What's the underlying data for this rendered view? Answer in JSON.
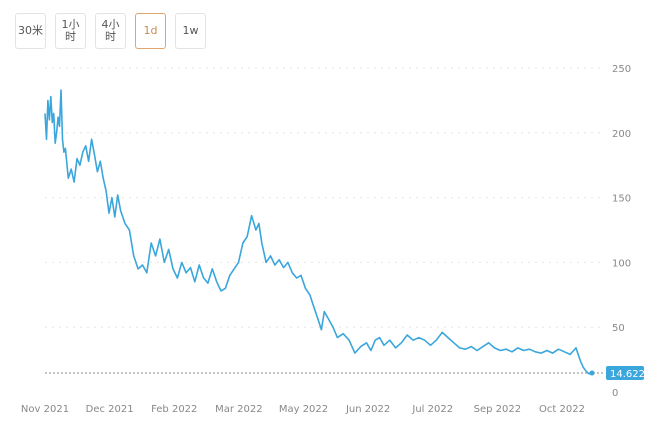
{
  "timeframes": [
    {
      "label": "30米",
      "active": false
    },
    {
      "label": "1小时",
      "active": false
    },
    {
      "label": "4小\n时",
      "active": false
    },
    {
      "label": "1d",
      "active": true
    },
    {
      "label": "1w",
      "active": false
    }
  ],
  "colors": {
    "line": "#3aa6dc",
    "accent": "#e0a46c",
    "grid": "#e6e6e6",
    "tick": "#888888"
  },
  "chart_data": {
    "type": "line",
    "x_tick_labels": [
      "Nov 2021",
      "Dec 2021",
      "Feb 2022",
      "Mar 2022",
      "May 2022",
      "Jun 2022",
      "Jul 2022",
      "Sep 2022",
      "Oct 2022"
    ],
    "y_ticks": [
      0,
      50,
      100,
      150,
      200,
      250
    ],
    "ylim": [
      0,
      250
    ],
    "y_axis_side": "right",
    "grid": "horizontal dotted",
    "current_price_label": "14.622",
    "current_price": 14.622,
    "series": [
      {
        "x": [
          "2021-11-01",
          "2021-11-02",
          "2021-11-03",
          "2021-11-04",
          "2021-11-05",
          "2021-11-06",
          "2021-11-07",
          "2021-11-08",
          "2021-11-09",
          "2021-11-10",
          "2021-11-11",
          "2021-11-12",
          "2021-11-13",
          "2021-11-14",
          "2021-11-15",
          "2021-11-17",
          "2021-11-19",
          "2021-11-21",
          "2021-11-23",
          "2021-11-25",
          "2021-11-27",
          "2021-11-29",
          "2021-12-01",
          "2021-12-03",
          "2021-12-05",
          "2021-12-07",
          "2021-12-09",
          "2021-12-11",
          "2021-12-13",
          "2021-12-15",
          "2021-12-17",
          "2021-12-19",
          "2021-12-21",
          "2021-12-23",
          "2021-12-26",
          "2021-12-29",
          "2022-01-01",
          "2022-01-04",
          "2022-01-07",
          "2022-01-10",
          "2022-01-13",
          "2022-01-16",
          "2022-01-19",
          "2022-01-22",
          "2022-01-25",
          "2022-01-28",
          "2022-01-31",
          "2022-02-03",
          "2022-02-06",
          "2022-02-09",
          "2022-02-12",
          "2022-02-15",
          "2022-02-18",
          "2022-02-21",
          "2022-02-24",
          "2022-02-27",
          "2022-03-02",
          "2022-03-05",
          "2022-03-08",
          "2022-03-11",
          "2022-03-14",
          "2022-03-17",
          "2022-03-20",
          "2022-03-23",
          "2022-03-26",
          "2022-03-28",
          "2022-03-30",
          "2022-04-02",
          "2022-04-05",
          "2022-04-08",
          "2022-04-11",
          "2022-04-14",
          "2022-04-17",
          "2022-04-20",
          "2022-04-23",
          "2022-04-26",
          "2022-04-29",
          "2022-05-02",
          "2022-05-05",
          "2022-05-08",
          "2022-05-10",
          "2022-05-12",
          "2022-05-15",
          "2022-05-18",
          "2022-05-21",
          "2022-05-25",
          "2022-05-29",
          "2022-06-02",
          "2022-06-06",
          "2022-06-10",
          "2022-06-13",
          "2022-06-16",
          "2022-06-19",
          "2022-06-22",
          "2022-06-26",
          "2022-06-30",
          "2022-07-04",
          "2022-07-08",
          "2022-07-12",
          "2022-07-16",
          "2022-07-20",
          "2022-07-24",
          "2022-07-28",
          "2022-08-01",
          "2022-08-05",
          "2022-08-09",
          "2022-08-13",
          "2022-08-17",
          "2022-08-21",
          "2022-08-25",
          "2022-08-29",
          "2022-09-02",
          "2022-09-06",
          "2022-09-10",
          "2022-09-14",
          "2022-09-18",
          "2022-09-22",
          "2022-09-26",
          "2022-09-30",
          "2022-10-04",
          "2022-10-08",
          "2022-10-12",
          "2022-10-16",
          "2022-10-20",
          "2022-10-24",
          "2022-10-28",
          "2022-11-01",
          "2022-11-04",
          "2022-11-06",
          "2022-11-08",
          "2022-11-10",
          "2022-11-12"
        ],
        "y": [
          215,
          195,
          225,
          210,
          228,
          208,
          215,
          192,
          200,
          212,
          205,
          233,
          195,
          185,
          188,
          165,
          172,
          162,
          180,
          175,
          185,
          190,
          178,
          195,
          183,
          170,
          178,
          165,
          155,
          138,
          150,
          135,
          152,
          140,
          130,
          125,
          105,
          95,
          98,
          92,
          115,
          105,
          118,
          100,
          110,
          95,
          88,
          100,
          92,
          96,
          85,
          98,
          88,
          84,
          95,
          85,
          78,
          80,
          90,
          95,
          100,
          115,
          120,
          136,
          125,
          130,
          115,
          100,
          105,
          98,
          102,
          96,
          100,
          92,
          88,
          90,
          80,
          75,
          65,
          55,
          48,
          62,
          56,
          50,
          42,
          45,
          40,
          30,
          35,
          38,
          32,
          40,
          42,
          36,
          40,
          34,
          38,
          44,
          40,
          42,
          40,
          36,
          40,
          46,
          42,
          38,
          34,
          33,
          35,
          32,
          35,
          38,
          34,
          32,
          33,
          31,
          34,
          32,
          33,
          31,
          30,
          32,
          30,
          33,
          31,
          29,
          34,
          24,
          19,
          16,
          14,
          14.622
        ]
      }
    ]
  }
}
